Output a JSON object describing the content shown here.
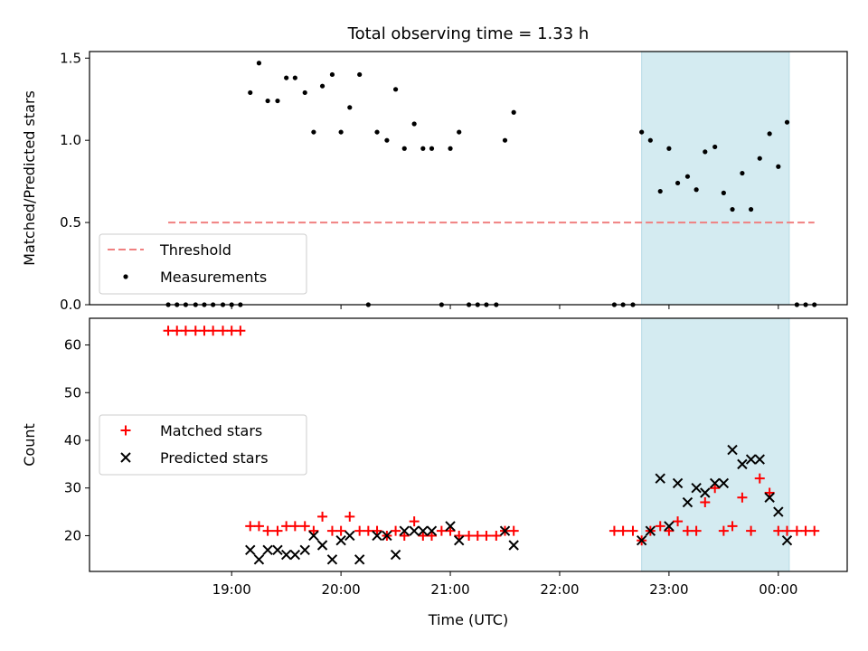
{
  "chart_data": {
    "title": "Total observing time = 1.33 h",
    "xlabel": "Time (UTC)",
    "x_unit": "hour (UTC, continuing past midnight as 24.0 = 00:00)",
    "x_ticks": [
      {
        "value": 19.0,
        "label": "19:00"
      },
      {
        "value": 20.0,
        "label": "20:00"
      },
      {
        "value": 21.0,
        "label": "21:00"
      },
      {
        "value": 22.0,
        "label": "22:00"
      },
      {
        "value": 23.0,
        "label": "23:00"
      },
      {
        "value": 24.0,
        "label": "00:00"
      }
    ],
    "xlim": [
      17.7,
      24.63
    ],
    "shaded_region": {
      "x_start": 22.75,
      "x_end": 24.1,
      "color": "#d4ebf1"
    },
    "panels": [
      {
        "type": "scatter",
        "ylabel": "Matched/Predicted stars",
        "ylim": [
          0,
          1.54
        ],
        "y_ticks": [
          {
            "value": 0.0,
            "label": "0.0"
          },
          {
            "value": 0.5,
            "label": "0.5"
          },
          {
            "value": 1.0,
            "label": "1.0"
          },
          {
            "value": 1.5,
            "label": "1.5"
          }
        ],
        "legend_position": "lower-left",
        "threshold": {
          "name": "Threshold",
          "y": 0.5,
          "x_start": 18.42,
          "x_end": 24.33,
          "color": "#f08080"
        },
        "series": [
          {
            "name": "Measurements",
            "color": "#000000",
            "x": [
              18.42,
              18.5,
              18.58,
              18.67,
              18.75,
              18.83,
              18.92,
              19.0,
              19.08,
              19.17,
              19.25,
              19.33,
              19.42,
              19.5,
              19.58,
              19.67,
              19.75,
              19.83,
              19.92,
              20.0,
              20.08,
              20.17,
              20.25,
              20.33,
              20.42,
              20.5,
              20.58,
              20.67,
              20.75,
              20.83,
              20.92,
              21.0,
              21.08,
              21.17,
              21.25,
              21.33,
              21.42,
              21.5,
              21.58,
              22.5,
              22.58,
              22.67,
              22.75,
              22.83,
              22.92,
              23.0,
              23.08,
              23.17,
              23.25,
              23.33,
              23.42,
              23.5,
              23.58,
              23.67,
              23.75,
              23.83,
              23.92,
              24.0,
              24.08,
              24.17,
              24.25,
              24.33
            ],
            "y": [
              0,
              0,
              0,
              0,
              0,
              0,
              0,
              0,
              0,
              1.29,
              1.47,
              1.24,
              1.24,
              1.38,
              1.38,
              1.29,
              1.05,
              1.33,
              1.4,
              1.05,
              1.2,
              1.4,
              0,
              1.05,
              1.0,
              1.31,
              0.95,
              1.1,
              0.95,
              0.95,
              0,
              0.95,
              1.05,
              0,
              0,
              0,
              0,
              1.0,
              1.17,
              0,
              0,
              0,
              1.05,
              1.0,
              0.69,
              0.95,
              0.74,
              0.78,
              0.7,
              0.93,
              0.96,
              0.68,
              0.58,
              0.8,
              0.58,
              0.89,
              1.04,
              0.84,
              1.11,
              0,
              0,
              0
            ]
          }
        ]
      },
      {
        "type": "scatter",
        "ylabel": "Count",
        "ylim": [
          12.5,
          65.6
        ],
        "y_ticks": [
          {
            "value": 20,
            "label": "20"
          },
          {
            "value": 30,
            "label": "30"
          },
          {
            "value": 40,
            "label": "40"
          },
          {
            "value": 50,
            "label": "50"
          },
          {
            "value": 60,
            "label": "60"
          }
        ],
        "legend_position": "center-left",
        "series": [
          {
            "name": "Matched stars",
            "color": "#ff0000",
            "marker": "+",
            "x": [
              18.42,
              18.5,
              18.58,
              18.67,
              18.75,
              18.83,
              18.92,
              19.0,
              19.08,
              19.17,
              19.25,
              19.33,
              19.42,
              19.5,
              19.58,
              19.67,
              19.75,
              19.83,
              19.92,
              20.0,
              20.08,
              20.17,
              20.25,
              20.33,
              20.42,
              20.5,
              20.58,
              20.67,
              20.75,
              20.83,
              20.92,
              21.0,
              21.08,
              21.17,
              21.25,
              21.33,
              21.42,
              21.5,
              21.58,
              22.5,
              22.58,
              22.67,
              22.75,
              22.83,
              22.92,
              23.0,
              23.08,
              23.17,
              23.25,
              23.33,
              23.42,
              23.5,
              23.58,
              23.67,
              23.75,
              23.83,
              23.92,
              24.0,
              24.08,
              24.17,
              24.25,
              24.33
            ],
            "y": [
              63,
              63,
              63,
              63,
              63,
              63,
              63,
              63,
              63,
              22,
              22,
              21,
              21,
              22,
              22,
              22,
              21,
              24,
              21,
              21,
              24,
              21,
              21,
              21,
              20,
              21,
              20,
              23,
              20,
              20,
              21,
              21,
              20,
              20,
              20,
              20,
              20,
              21,
              21,
              21,
              21,
              21,
              19,
              21,
              22,
              21,
              23,
              21,
              21,
              27,
              30,
              21,
              22,
              28,
              21,
              32,
              29,
              21,
              21,
              21,
              21,
              21
            ]
          },
          {
            "name": "Predicted stars",
            "color": "#000000",
            "marker": "x",
            "x": [
              19.17,
              19.25,
              19.33,
              19.42,
              19.5,
              19.58,
              19.67,
              19.75,
              19.83,
              19.92,
              20.0,
              20.08,
              20.17,
              20.33,
              20.42,
              20.5,
              20.58,
              20.67,
              20.75,
              20.83,
              21.0,
              21.08,
              21.5,
              21.58,
              22.75,
              22.83,
              22.92,
              23.0,
              23.08,
              23.17,
              23.25,
              23.33,
              23.42,
              23.5,
              23.58,
              23.67,
              23.75,
              23.83,
              23.92,
              24.0,
              24.08
            ],
            "y": [
              17,
              15,
              17,
              17,
              16,
              16,
              17,
              20,
              18,
              15,
              19,
              20,
              15,
              20,
              20,
              16,
              21,
              21,
              21,
              21,
              22,
              19,
              21,
              18,
              19,
              21,
              32,
              22,
              31,
              27,
              30,
              29,
              31,
              31,
              38,
              35,
              36,
              36,
              28,
              25,
              19
            ]
          }
        ]
      }
    ]
  }
}
